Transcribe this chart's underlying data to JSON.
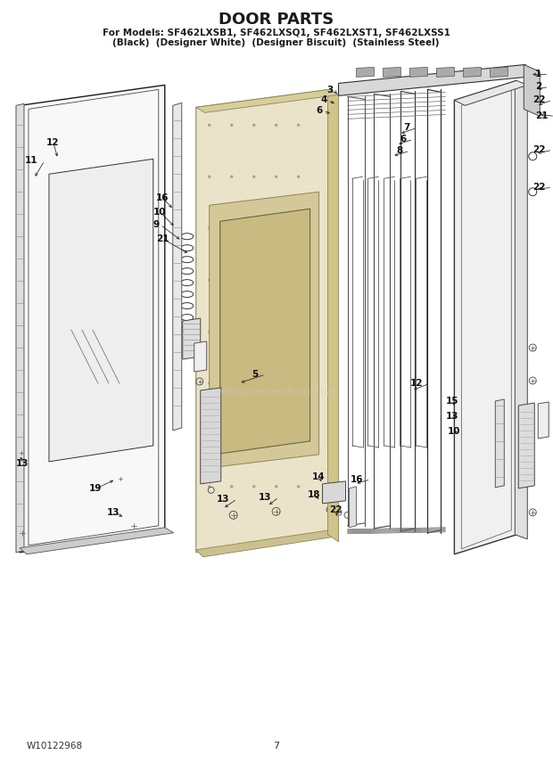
{
  "title": "DOOR PARTS",
  "subtitle_line1": "For Models: SF462LXSB1, SF462LXSQ1, SF462LXST1, SF462LXSS1",
  "subtitle_line2": "(Black)  (Designer White)  (Designer Biscuit)  (Stainless Steel)",
  "footer_left": "W10122968",
  "footer_center": "7",
  "bg_color": "#ffffff",
  "line_color": "#1a1a1a",
  "watermark": "eReplacementParts.com",
  "img_path": null
}
